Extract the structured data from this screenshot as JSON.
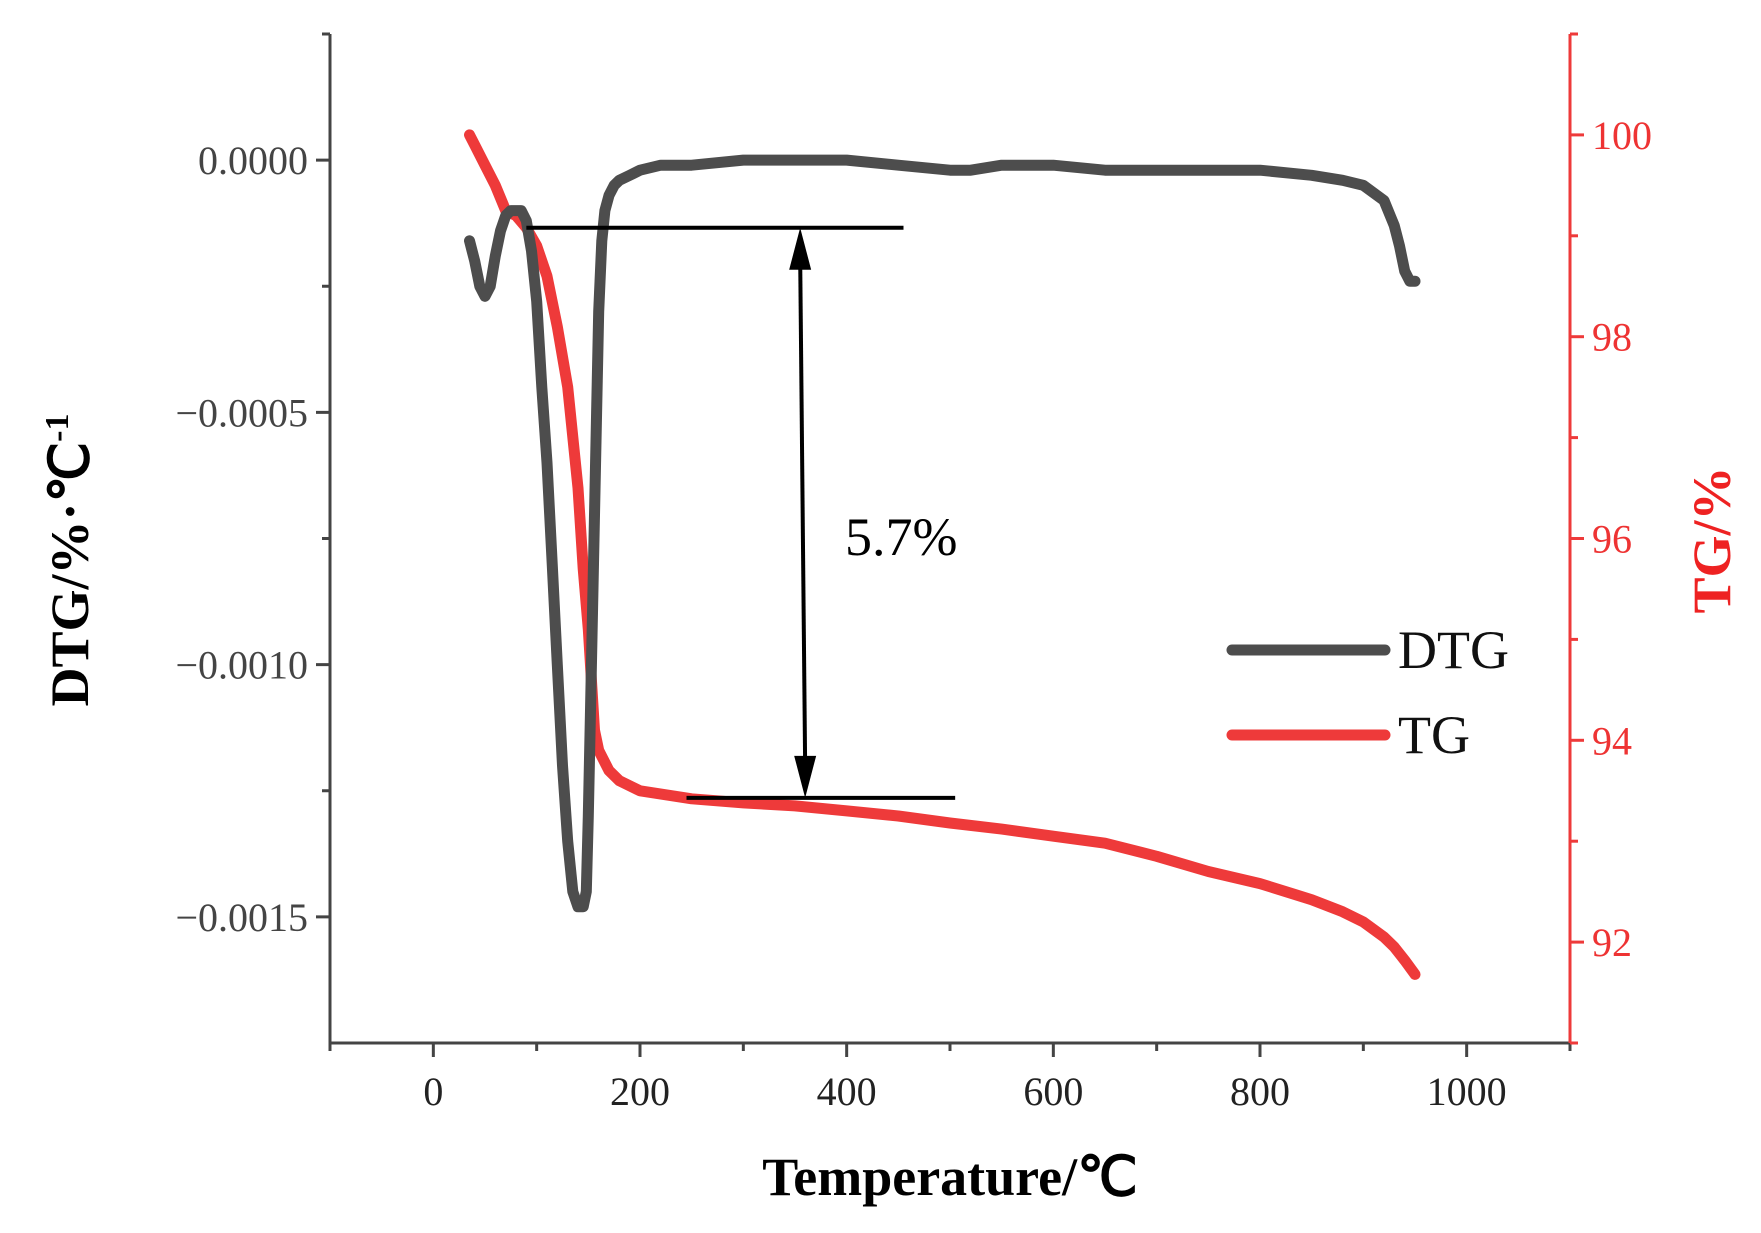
{
  "chart_data": {
    "type": "line",
    "xlabel": "Temperature/℃",
    "ylabel_left": "DTG/%·℃",
    "ylabel_left_superscript": "-1",
    "ylabel_right": "TG/%",
    "xlim": [
      -100,
      1100
    ],
    "ylim_left": [
      -0.00175,
      0.00025
    ],
    "ylim_right": [
      91,
      101
    ],
    "x_ticks": [
      "0",
      "200",
      "400",
      "600",
      "800",
      "1000"
    ],
    "y_ticks_left": [
      "0.0000",
      "−0.0005",
      "−0.0010",
      "−0.0015"
    ],
    "y_ticks_right": [
      "92",
      "94",
      "96",
      "98",
      "100"
    ],
    "series": [
      {
        "name": "DTG",
        "axis": "left",
        "color": "#4d4d4d",
        "x": [
          35,
          40,
          45,
          50,
          55,
          60,
          65,
          70,
          75,
          80,
          85,
          90,
          95,
          100,
          105,
          110,
          115,
          120,
          125,
          130,
          135,
          140,
          145,
          148,
          150,
          152,
          155,
          158,
          160,
          163,
          166,
          170,
          175,
          180,
          190,
          200,
          220,
          250,
          300,
          350,
          400,
          450,
          500,
          520,
          550,
          600,
          650,
          700,
          750,
          800,
          850,
          880,
          900,
          920,
          930,
          935,
          940,
          945,
          950
        ],
        "y": [
          -0.00016,
          -0.0002,
          -0.00025,
          -0.00027,
          -0.00025,
          -0.00019,
          -0.00014,
          -0.00011,
          -0.0001,
          -0.0001,
          -0.0001,
          -0.00012,
          -0.00018,
          -0.00028,
          -0.00045,
          -0.0006,
          -0.0008,
          -0.001,
          -0.0012,
          -0.00135,
          -0.00145,
          -0.00148,
          -0.00148,
          -0.00145,
          -0.0013,
          -0.0011,
          -0.0008,
          -0.0005,
          -0.0003,
          -0.00016,
          -0.0001,
          -7e-05,
          -5e-05,
          -4e-05,
          -3e-05,
          -2e-05,
          -1e-05,
          -1e-05,
          0.0,
          0.0,
          0.0,
          -1e-05,
          -2e-05,
          -2e-05,
          -1e-05,
          -1e-05,
          -2e-05,
          -2e-05,
          -2e-05,
          -2e-05,
          -3e-05,
          -4e-05,
          -5e-05,
          -8e-05,
          -0.00013,
          -0.00017,
          -0.00022,
          -0.00024,
          -0.00024
        ]
      },
      {
        "name": "TG",
        "axis": "right",
        "color": "#ee3a3a",
        "x": [
          35,
          40,
          50,
          60,
          70,
          80,
          90,
          100,
          110,
          120,
          130,
          140,
          145,
          150,
          153,
          156,
          160,
          170,
          180,
          200,
          250,
          300,
          350,
          400,
          450,
          500,
          550,
          600,
          650,
          700,
          750,
          800,
          850,
          880,
          900,
          920,
          930,
          940,
          950
        ],
        "y": [
          100.0,
          99.9,
          99.7,
          99.5,
          99.25,
          99.2,
          99.08,
          98.9,
          98.6,
          98.1,
          97.5,
          96.5,
          95.7,
          95.1,
          94.6,
          94.1,
          93.9,
          93.7,
          93.6,
          93.5,
          93.42,
          93.38,
          93.35,
          93.3,
          93.25,
          93.18,
          93.12,
          93.05,
          92.98,
          92.85,
          92.7,
          92.58,
          92.42,
          92.3,
          92.2,
          92.05,
          91.95,
          91.82,
          91.68
        ]
      }
    ],
    "annotation": {
      "label": "5.7%",
      "upper_level_tg": 99.08,
      "lower_level_tg": 93.43,
      "upper_line_x": [
        90,
        455
      ],
      "lower_line_x": [
        245,
        505
      ],
      "arrow_x": 355
    },
    "legend": {
      "position": "middle-right",
      "entries": [
        {
          "label": "DTG",
          "color": "#4d4d4d"
        },
        {
          "label": "TG",
          "color": "#ee3a3a"
        }
      ]
    }
  }
}
